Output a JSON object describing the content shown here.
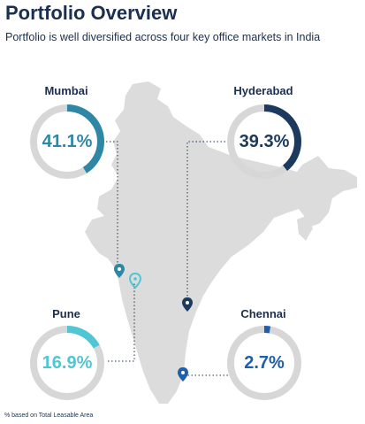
{
  "header": {
    "title": "Portfolio Overview",
    "subtitle": "Portfolio is well diversified across four key office markets in India"
  },
  "markets": [
    {
      "name": "Mumbai",
      "share_label": "41.1%",
      "share": 41.1,
      "color": "#2f87a6"
    },
    {
      "name": "Hyderabad",
      "share_label": "39.3%",
      "share": 39.3,
      "color": "#1b3a5e"
    },
    {
      "name": "Pune",
      "share_label": "16.9%",
      "share": 16.9,
      "color": "#4fc6d3"
    },
    {
      "name": "Chennai",
      "share_label": "2.7%",
      "share": 2.7,
      "color": "#1f5ea8"
    }
  ],
  "colors": {
    "map_fill": "#dcdcdc",
    "ring_track": "#d7d7d7",
    "text": "#1b2f4f"
  },
  "footnote": "% based on Total Leasable Area"
}
